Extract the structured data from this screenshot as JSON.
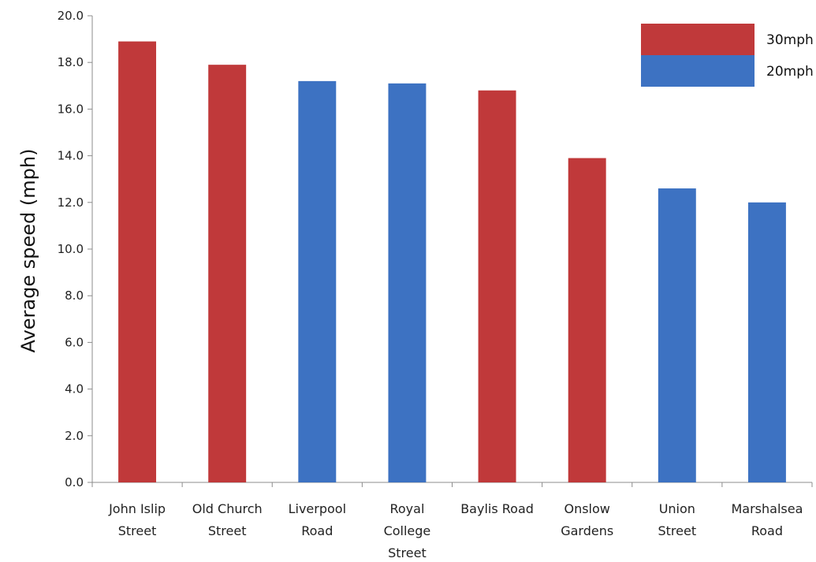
{
  "chart_data": {
    "type": "bar",
    "title": "",
    "xlabel": "",
    "ylabel": "Average speed (mph)",
    "ylim": [
      0,
      20
    ],
    "yticks": [
      "0.0",
      "2.0",
      "4.0",
      "6.0",
      "8.0",
      "10.0",
      "12.0",
      "14.0",
      "16.0",
      "18.0",
      "20.0"
    ],
    "grid": false,
    "legend_position": "top-right",
    "categories": [
      [
        "John Islip",
        "Street"
      ],
      [
        "Old Church",
        "Street"
      ],
      [
        "Liverpool",
        "Road"
      ],
      [
        "Royal",
        "College",
        "Street"
      ],
      [
        "Baylis Road"
      ],
      [
        "Onslow",
        "Gardens"
      ],
      [
        "Union",
        "Street"
      ],
      [
        "Marshalsea",
        "Road"
      ]
    ],
    "values": [
      18.9,
      17.9,
      17.2,
      17.1,
      16.8,
      13.9,
      12.6,
      12.0
    ],
    "series_by_bar": [
      "30mph",
      "30mph",
      "20mph",
      "20mph",
      "30mph",
      "30mph",
      "20mph",
      "20mph"
    ],
    "legend": [
      {
        "name": "30mph",
        "color": "#c0393a"
      },
      {
        "name": "20mph",
        "color": "#3d72c2"
      }
    ]
  }
}
